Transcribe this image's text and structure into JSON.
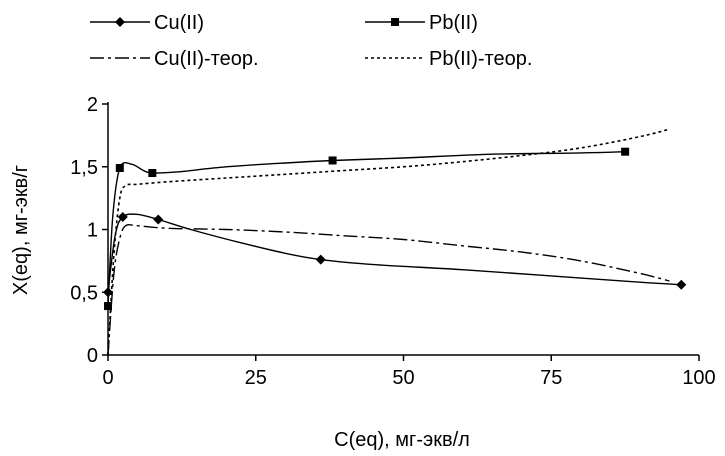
{
  "chart_data": {
    "type": "line",
    "title": "",
    "xlabel": "C(eq), мг-экв/л",
    "ylabel": "X(eq), мг-экв/г",
    "xlim": [
      0,
      100
    ],
    "ylim": [
      0,
      2
    ],
    "x_ticks": [
      "0",
      "25",
      "50",
      "75",
      "100"
    ],
    "x_tick_values": [
      0,
      25,
      50,
      75,
      100
    ],
    "y_ticks": [
      "0",
      "0,5",
      "1",
      "1,5",
      "2"
    ],
    "y_tick_values": [
      0,
      0.5,
      1,
      1.5,
      2
    ],
    "grid": false,
    "legend_position": "top",
    "series": [
      {
        "name": "Cu(II)",
        "marker": "diamond",
        "line_style": "solid",
        "points": [
          [
            0,
            0.5
          ],
          [
            2.5,
            1.1
          ],
          [
            8.5,
            1.08
          ],
          [
            36,
            0.76
          ],
          [
            97,
            0.56
          ]
        ],
        "smooth_curve": [
          [
            0,
            0.5
          ],
          [
            1.2,
            0.95
          ],
          [
            2.5,
            1.1
          ],
          [
            5,
            1.12
          ],
          [
            8.5,
            1.08
          ],
          [
            14,
            1.0
          ],
          [
            22,
            0.9
          ],
          [
            30,
            0.81
          ],
          [
            36,
            0.76
          ],
          [
            45,
            0.72
          ],
          [
            60,
            0.68
          ],
          [
            75,
            0.63
          ],
          [
            90,
            0.58
          ],
          [
            97,
            0.56
          ]
        ]
      },
      {
        "name": "Pb(II)",
        "marker": "square",
        "line_style": "solid",
        "points": [
          [
            0,
            0.39
          ],
          [
            2,
            1.49
          ],
          [
            7.5,
            1.45
          ],
          [
            38,
            1.55
          ],
          [
            87.5,
            1.62
          ]
        ],
        "smooth_curve": [
          [
            0,
            0.39
          ],
          [
            0.8,
            1.1
          ],
          [
            2,
            1.49
          ],
          [
            4,
            1.52
          ],
          [
            6,
            1.47
          ],
          [
            7.5,
            1.45
          ],
          [
            12,
            1.46
          ],
          [
            20,
            1.5
          ],
          [
            30,
            1.53
          ],
          [
            38,
            1.55
          ],
          [
            50,
            1.57
          ],
          [
            65,
            1.6
          ],
          [
            80,
            1.61
          ],
          [
            87.5,
            1.62
          ]
        ]
      },
      {
        "name": "Cu(II)-теор.",
        "marker": "none",
        "line_style": "dash-dot",
        "points": [
          [
            0,
            0.0
          ],
          [
            1,
            0.65
          ],
          [
            2,
            0.93
          ],
          [
            3,
            1.03
          ],
          [
            5,
            1.03
          ],
          [
            10,
            1.01
          ],
          [
            20,
            1.0
          ],
          [
            30,
            0.98
          ],
          [
            40,
            0.95
          ],
          [
            50,
            0.92
          ],
          [
            60,
            0.87
          ],
          [
            70,
            0.82
          ],
          [
            80,
            0.75
          ],
          [
            90,
            0.65
          ],
          [
            95,
            0.59
          ]
        ]
      },
      {
        "name": "Pb(II)-теор.",
        "marker": "none",
        "line_style": "dotted",
        "points": [
          [
            0,
            0.0
          ],
          [
            1,
            0.8
          ],
          [
            2,
            1.25
          ],
          [
            3,
            1.35
          ],
          [
            5,
            1.36
          ],
          [
            10,
            1.38
          ],
          [
            20,
            1.41
          ],
          [
            30,
            1.44
          ],
          [
            40,
            1.47
          ],
          [
            50,
            1.5
          ],
          [
            60,
            1.54
          ],
          [
            70,
            1.59
          ],
          [
            80,
            1.65
          ],
          [
            90,
            1.74
          ],
          [
            95,
            1.8
          ]
        ]
      }
    ]
  }
}
